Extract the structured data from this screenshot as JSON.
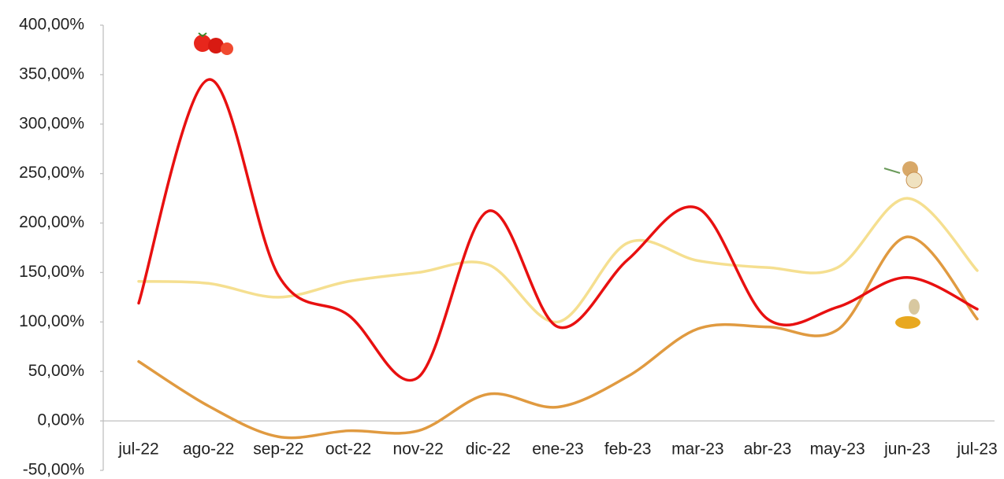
{
  "chart_data": {
    "type": "line",
    "categories": [
      "jul-22",
      "ago-22",
      "sep-22",
      "oct-22",
      "nov-22",
      "dic-22",
      "ene-23",
      "feb-23",
      "mar-23",
      "abr-23",
      "may-23",
      "jun-23",
      "jul-23"
    ],
    "series": [
      {
        "color": "#f5df90",
        "values": [
          141,
          139,
          125,
          141,
          150,
          158,
          100,
          180,
          162,
          155,
          155,
          225,
          152
        ]
      },
      {
        "color": "#e09a40",
        "values": [
          60,
          15,
          -16,
          -10,
          -10,
          27,
          14,
          45,
          93,
          95,
          92,
          186,
          103
        ]
      },
      {
        "color": "#e81010",
        "values": [
          119,
          345,
          147,
          107,
          44,
          212,
          95,
          163,
          215,
          103,
          115,
          145,
          113
        ]
      }
    ],
    "ylim": [
      -50,
      400
    ],
    "yticks": [
      {
        "value": -50,
        "label": "-50,00%"
      },
      {
        "value": 0,
        "label": "0,00%"
      },
      {
        "value": 50,
        "label": "50,00%"
      },
      {
        "value": 100,
        "label": "100,00%"
      },
      {
        "value": 150,
        "label": "150,00%"
      },
      {
        "value": 200,
        "label": "200,00%"
      },
      {
        "value": 250,
        "label": "250,00%"
      },
      {
        "value": 300,
        "label": "300,00%"
      },
      {
        "value": 350,
        "label": "350,00%"
      },
      {
        "value": 400,
        "label": "400,00%"
      }
    ],
    "grid": false
  }
}
